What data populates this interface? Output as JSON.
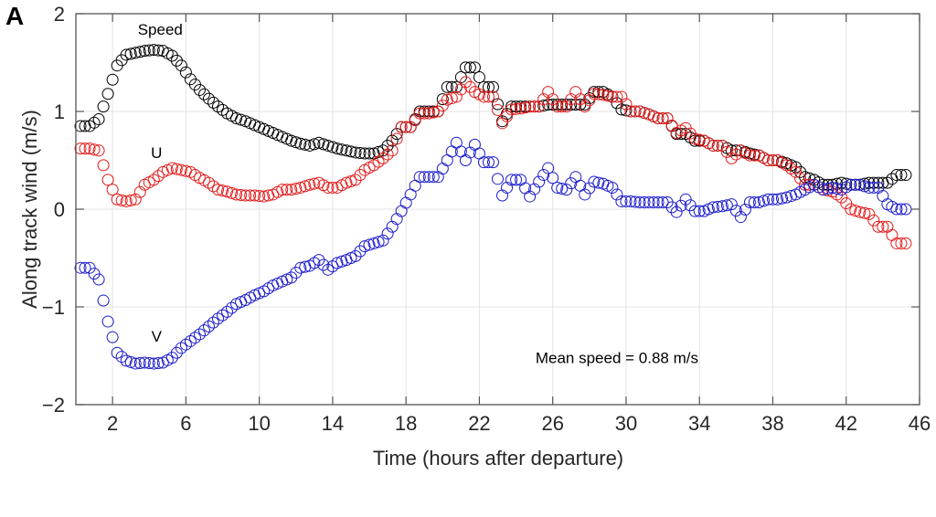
{
  "panel_label": "A",
  "chart_data": {
    "type": "scatter",
    "title": "",
    "xlabel": "Time (hours after departure)",
    "ylabel": "Along track wind (m/s)",
    "xlim": [
      0,
      46
    ],
    "ylim": [
      -2,
      2
    ],
    "xticks": [
      2,
      6,
      10,
      14,
      18,
      22,
      26,
      30,
      34,
      38,
      42,
      46
    ],
    "yticks": [
      -2,
      -1,
      0,
      1,
      2
    ],
    "ytick_labels": [
      "−2",
      "−1",
      "0",
      "1",
      "2"
    ],
    "grid": true,
    "marker": "open-circle",
    "x": [
      0.25,
      0.75,
      1.25,
      1.75,
      2.25,
      2.75,
      3.25,
      3.75,
      4.25,
      4.75,
      5.25,
      5.75,
      6.25,
      6.75,
      7.25,
      7.75,
      8.25,
      8.75,
      9.25,
      9.75,
      10.25,
      10.75,
      11.25,
      11.75,
      12.25,
      12.75,
      13.25,
      13.75,
      14.25,
      14.75,
      15.25,
      15.75,
      16.25,
      16.75,
      17.25,
      17.75,
      18.25,
      18.75,
      19.25,
      19.75,
      20.25,
      20.75,
      21.25,
      21.75,
      22.25,
      22.75,
      23.25,
      23.75,
      24.25,
      24.75,
      25.25,
      25.75,
      26.25,
      26.75,
      27.25,
      27.75,
      28.25,
      28.75,
      29.25,
      29.75,
      30.25,
      30.75,
      31.25,
      31.75,
      32.25,
      32.75,
      33.25,
      33.75,
      34.25,
      34.75,
      35.25,
      35.75,
      36.25,
      36.75,
      37.25,
      37.75,
      38.25,
      38.75,
      39.25,
      39.75,
      40.25,
      40.75,
      41.25,
      41.75,
      42.25,
      42.75,
      43.25,
      43.75,
      44.25,
      44.75,
      45.25
    ],
    "series": [
      {
        "name": "Speed",
        "color": "#000000",
        "values": [
          0.85,
          0.85,
          0.92,
          1.18,
          1.47,
          1.58,
          1.6,
          1.62,
          1.63,
          1.62,
          1.57,
          1.47,
          1.33,
          1.22,
          1.13,
          1.05,
          0.98,
          0.93,
          0.9,
          0.86,
          0.82,
          0.78,
          0.74,
          0.7,
          0.67,
          0.65,
          0.68,
          0.65,
          0.62,
          0.6,
          0.58,
          0.57,
          0.57,
          0.6,
          0.7,
          0.84,
          0.84,
          1.0,
          1.0,
          1.0,
          1.25,
          1.25,
          1.45,
          1.45,
          1.25,
          1.25,
          0.9,
          1.05,
          1.05,
          1.05,
          1.05,
          1.07,
          1.07,
          1.07,
          1.07,
          1.07,
          1.2,
          1.2,
          1.15,
          1.02,
          1.0,
          1.0,
          0.97,
          0.93,
          0.93,
          0.77,
          0.77,
          0.7,
          0.7,
          0.65,
          0.65,
          0.6,
          0.6,
          0.57,
          0.55,
          0.5,
          0.5,
          0.47,
          0.43,
          0.33,
          0.3,
          0.25,
          0.25,
          0.27,
          0.25,
          0.25,
          0.27,
          0.27,
          0.27,
          0.35,
          0.35
        ]
      },
      {
        "name": "U",
        "color": "#e41a1a",
        "values": [
          0.62,
          0.62,
          0.6,
          0.3,
          0.1,
          0.08,
          0.1,
          0.25,
          0.3,
          0.38,
          0.42,
          0.4,
          0.38,
          0.32,
          0.27,
          0.2,
          0.18,
          0.15,
          0.14,
          0.14,
          0.13,
          0.15,
          0.2,
          0.2,
          0.22,
          0.25,
          0.27,
          0.22,
          0.22,
          0.27,
          0.3,
          0.4,
          0.45,
          0.52,
          0.6,
          0.84,
          0.84,
          0.98,
          0.98,
          1.0,
          1.12,
          1.15,
          1.3,
          1.2,
          1.15,
          1.15,
          0.88,
          1.02,
          1.03,
          1.05,
          1.05,
          1.2,
          1.05,
          1.05,
          1.2,
          1.05,
          1.18,
          1.17,
          1.15,
          1.15,
          1.0,
          1.0,
          0.97,
          0.93,
          0.93,
          0.78,
          0.83,
          0.72,
          0.7,
          0.65,
          0.65,
          0.52,
          0.6,
          0.55,
          0.55,
          0.5,
          0.5,
          0.45,
          0.38,
          0.25,
          0.25,
          0.2,
          0.18,
          0.12,
          0.0,
          -0.03,
          -0.05,
          -0.18,
          -0.18,
          -0.35,
          -0.35
        ]
      },
      {
        "name": "V",
        "color": "#1a1acc",
        "values": [
          -0.6,
          -0.6,
          -0.72,
          -1.15,
          -1.47,
          -1.55,
          -1.58,
          -1.57,
          -1.58,
          -1.57,
          -1.52,
          -1.42,
          -1.35,
          -1.28,
          -1.2,
          -1.12,
          -1.05,
          -0.97,
          -0.93,
          -0.88,
          -0.84,
          -0.78,
          -0.74,
          -0.7,
          -0.6,
          -0.58,
          -0.52,
          -0.62,
          -0.55,
          -0.52,
          -0.48,
          -0.38,
          -0.35,
          -0.32,
          -0.18,
          -0.02,
          0.15,
          0.33,
          0.33,
          0.33,
          0.5,
          0.68,
          0.5,
          0.66,
          0.48,
          0.48,
          0.14,
          0.3,
          0.3,
          0.13,
          0.28,
          0.42,
          0.22,
          0.2,
          0.33,
          0.15,
          0.28,
          0.26,
          0.22,
          0.08,
          0.08,
          0.07,
          0.07,
          0.07,
          0.07,
          -0.03,
          0.1,
          -0.02,
          -0.02,
          0.02,
          0.03,
          0.05,
          -0.08,
          0.07,
          0.07,
          0.1,
          0.1,
          0.12,
          0.15,
          0.2,
          0.25,
          0.2,
          0.22,
          0.2,
          0.25,
          0.25,
          0.22,
          0.22,
          0.05,
          0.0,
          0.0
        ]
      }
    ],
    "annotations": [
      {
        "text": "Speed",
        "x": 4.6,
        "y": 1.84
      },
      {
        "text": "U",
        "x": 4.4,
        "y": 0.58
      },
      {
        "text": "V",
        "x": 4.4,
        "y": -1.3
      },
      {
        "text": "Mean speed = 0.88 m/s",
        "x": 29.5,
        "y": -1.52
      }
    ]
  }
}
